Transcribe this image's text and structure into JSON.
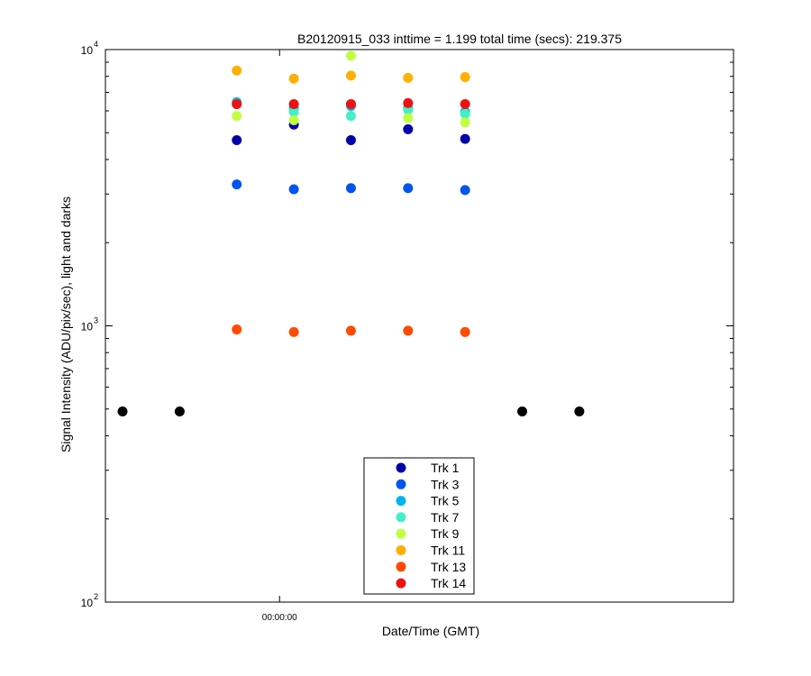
{
  "chart_data": {
    "type": "scatter",
    "title": "B20120915_033 inttime = 1.199 total time (secs): 219.375",
    "xlabel": "Date/Time (GMT)",
    "ylabel": "Signal Intensity (ADU/pix/sec), light and darks",
    "yscale": "log",
    "ylim": [
      100,
      10000
    ],
    "y_ticks": [
      {
        "value": 100,
        "base": "10",
        "exp": "2"
      },
      {
        "value": 1000,
        "base": "10",
        "exp": "3"
      },
      {
        "value": 10000,
        "base": "10",
        "exp": "4"
      }
    ],
    "x_tick_label": "00:00:00",
    "x_domain": [
      0,
      22
    ],
    "x_tick_value": 6.1,
    "legend": {
      "position": "bottom-center"
    },
    "grid": false,
    "series": [
      {
        "name": "Trk 1",
        "color": "#0000aa",
        "x": [
          4.6,
          6.6,
          8.6,
          10.6,
          12.6
        ],
        "y": [
          4700,
          5350,
          4700,
          5150,
          4750
        ]
      },
      {
        "name": "Trk 3",
        "color": "#0055ee",
        "x": [
          4.6,
          6.6,
          8.6,
          10.6,
          12.6
        ],
        "y": [
          3250,
          3120,
          3150,
          3150,
          3100
        ]
      },
      {
        "name": "Trk 5",
        "color": "#00b4ee",
        "x": [
          4.6,
          6.6,
          8.6,
          10.6,
          12.6
        ],
        "y": [
          6450,
          6150,
          6250,
          6150,
          5950
        ]
      },
      {
        "name": "Trk 7",
        "color": "#40f0c8",
        "x": [
          4.6,
          6.6,
          8.6,
          10.6,
          12.6
        ],
        "y": [
          6350,
          5950,
          5750,
          6050,
          5850
        ]
      },
      {
        "name": "Trk 9",
        "color": "#bfff40",
        "x": [
          4.6,
          6.6,
          8.6,
          10.6,
          12.6
        ],
        "y": [
          5750,
          5550,
          9500,
          5650,
          5450
        ]
      },
      {
        "name": "Trk 11",
        "color": "#ffb000",
        "x": [
          4.6,
          6.6,
          8.6,
          10.6,
          12.6
        ],
        "y": [
          8400,
          7850,
          8050,
          7900,
          7950
        ]
      },
      {
        "name": "Trk 13",
        "color": "#ff4a00",
        "x": [
          4.6,
          6.6,
          8.6,
          10.6,
          12.6
        ],
        "y": [
          970,
          950,
          960,
          960,
          950
        ]
      },
      {
        "name": "Trk 14",
        "color": "#ee1111",
        "x": [
          4.6,
          6.6,
          8.6,
          10.6,
          12.6
        ],
        "y": [
          6350,
          6350,
          6350,
          6400,
          6350
        ]
      },
      {
        "color": "#000000",
        "x": [
          0.6,
          2.6,
          14.6,
          16.6
        ],
        "y": [
          490,
          490,
          490,
          490
        ]
      }
    ]
  }
}
